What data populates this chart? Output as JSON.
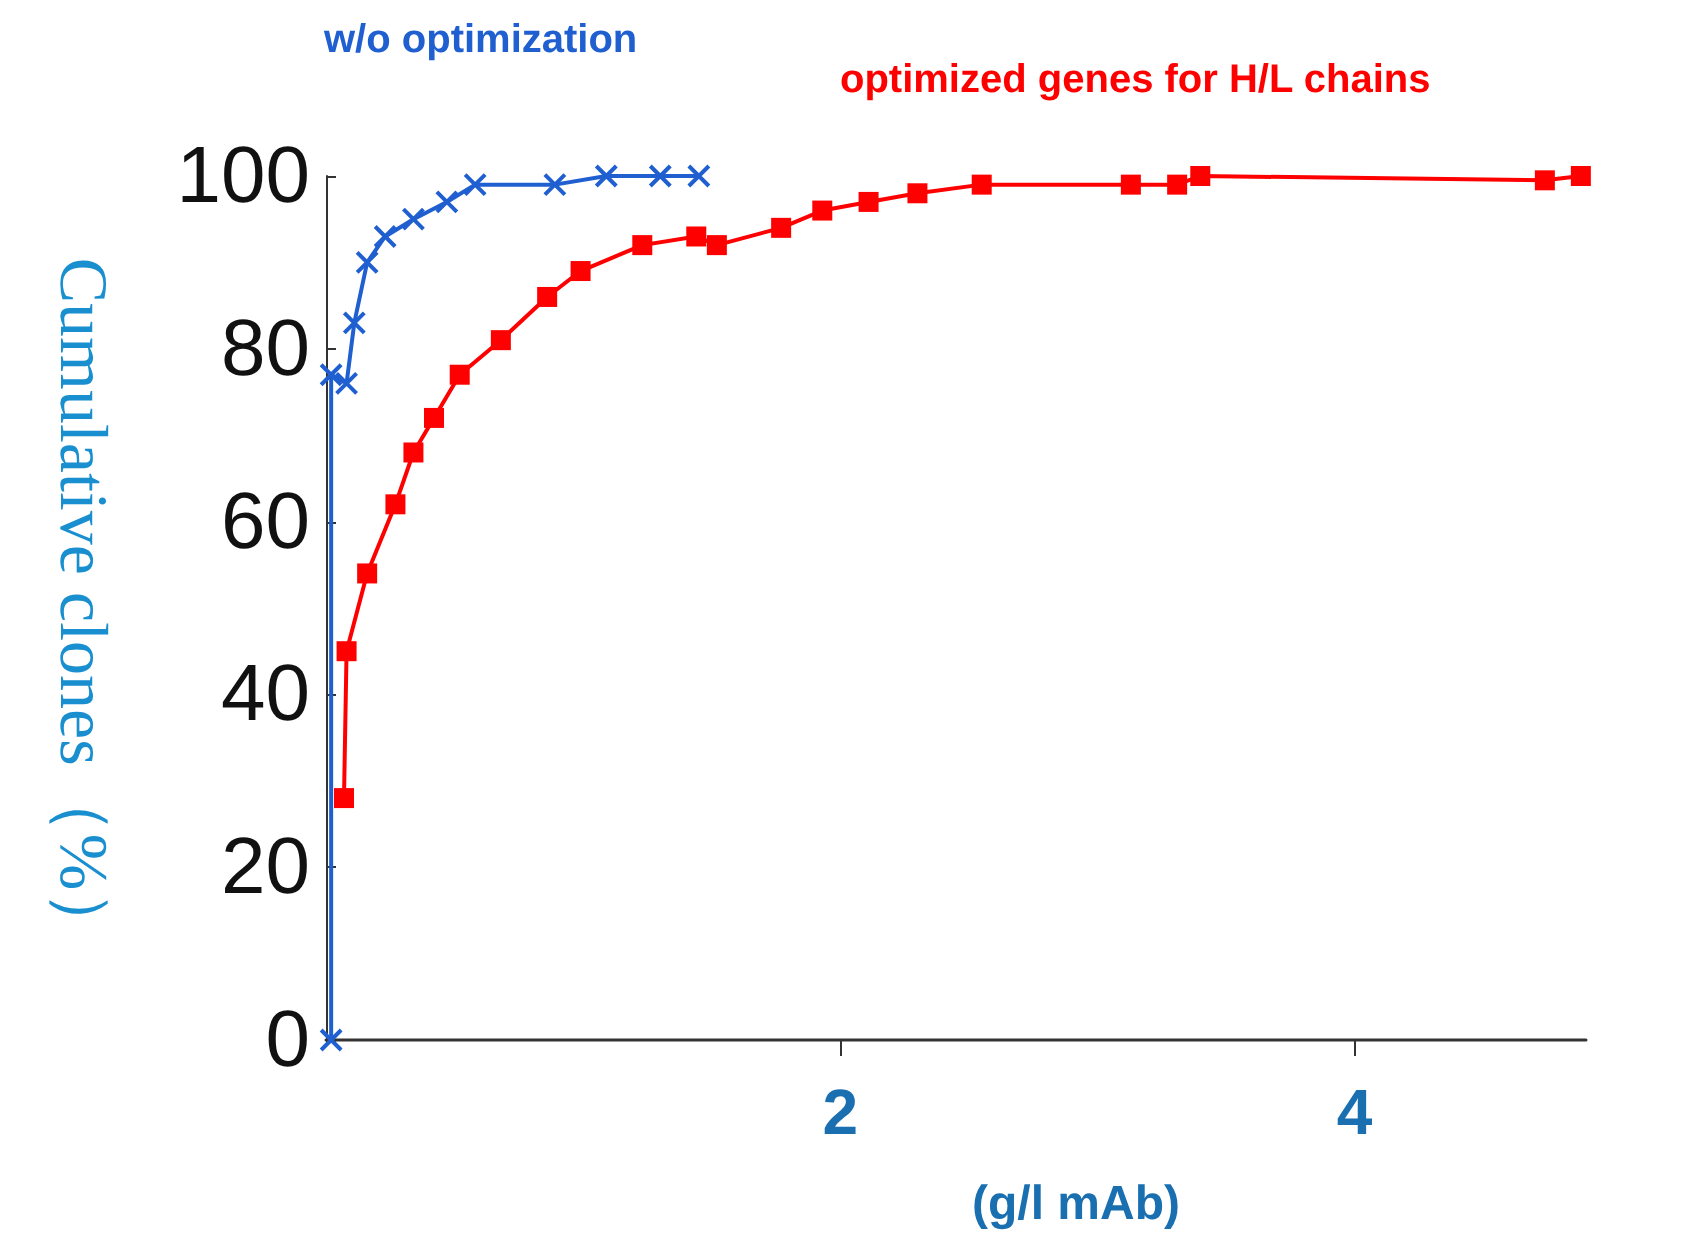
{
  "chart_data": {
    "type": "line",
    "xlabel": "(g/l mAb)",
    "ylabel": "Cumulative clones（%）",
    "xlim": [
      0,
      4.9
    ],
    "xticks": [
      2,
      4
    ],
    "ylim": [
      0,
      100
    ],
    "yticks": [
      0,
      20,
      40,
      60,
      80,
      100
    ],
    "grid": false,
    "legend": false,
    "series": [
      {
        "name": "w/o optimization",
        "color": "#1f5fd0",
        "marker": "cross",
        "x": [
          0.02,
          0.02,
          0.08,
          0.11,
          0.16,
          0.23,
          0.34,
          0.47,
          0.58,
          0.89,
          1.09,
          1.3,
          1.45
        ],
        "values": [
          0,
          77,
          76,
          83,
          90,
          93,
          95,
          97,
          99,
          99,
          100,
          100,
          100
        ]
      },
      {
        "name": "optimized genes for H/L chains",
        "color": "#ff0000",
        "marker": "square",
        "x": [
          0.07,
          0.08,
          0.16,
          0.27,
          0.34,
          0.42,
          0.52,
          0.68,
          0.86,
          0.99,
          1.23,
          1.44,
          1.52,
          1.77,
          1.93,
          2.11,
          2.3,
          2.55,
          3.13,
          3.31,
          3.4,
          4.74,
          4.88
        ],
        "values": [
          28,
          45,
          54,
          62,
          68,
          72,
          77,
          81,
          86,
          89,
          92,
          93,
          92,
          94,
          96,
          97,
          98,
          99,
          99,
          99,
          100,
          99.5,
          100
        ]
      }
    ]
  }
}
